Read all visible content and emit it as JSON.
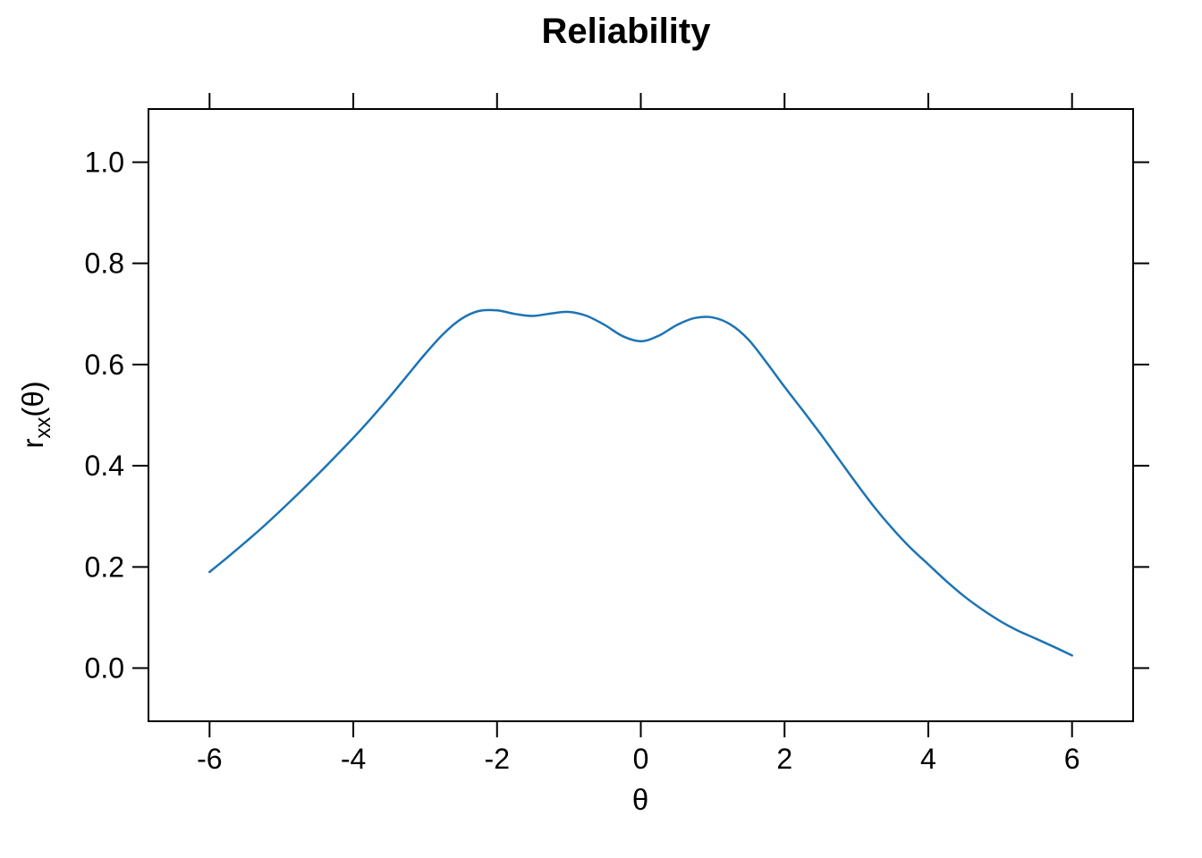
{
  "page": {
    "background_color": "#ffffff",
    "foreground_color": "#000000"
  },
  "chart": {
    "title": "Reliability",
    "x_label": "θ",
    "y_label_base": "r",
    "y_label_sub": "xx",
    "y_label_suffix": "(θ)",
    "line_color": "#1c74b4",
    "axis_color": "#000000",
    "x_tick_labels": [
      "-6",
      "-4",
      "-2",
      "0",
      "2",
      "4",
      "6"
    ],
    "y_tick_labels": [
      "0.0",
      "0.2",
      "0.4",
      "0.6",
      "0.8",
      "1.0"
    ]
  },
  "chart_data": {
    "type": "line",
    "title": "Reliability",
    "xlabel": "θ",
    "ylabel": "r_xx(θ)",
    "xlim": [
      -6.85,
      6.85
    ],
    "ylim": [
      -0.105,
      1.105
    ],
    "x_ticks": [
      -6,
      -4,
      -2,
      0,
      2,
      4,
      6
    ],
    "y_ticks": [
      0.0,
      0.2,
      0.4,
      0.6,
      0.8,
      1.0
    ],
    "grid": false,
    "legend": "none",
    "box": "all-four-sides-ticked",
    "series": [
      {
        "name": "reliability-curve",
        "color": "#1c74b4",
        "x": [
          -6,
          -5.75,
          -5.5,
          -5.25,
          -5,
          -4.75,
          -4.5,
          -4.25,
          -4,
          -3.75,
          -3.5,
          -3.25,
          -3,
          -2.75,
          -2.5,
          -2.25,
          -2,
          -1.75,
          -1.5,
          -1.25,
          -1,
          -0.75,
          -0.5,
          -0.25,
          0,
          0.25,
          0.5,
          0.75,
          1,
          1.25,
          1.5,
          1.75,
          2,
          2.25,
          2.5,
          2.75,
          3,
          3.25,
          3.5,
          3.75,
          4,
          4.25,
          4.5,
          4.75,
          5,
          5.25,
          5.5,
          5.75,
          6
        ],
        "y": [
          0.19,
          0.219,
          0.249,
          0.28,
          0.313,
          0.347,
          0.382,
          0.418,
          0.455,
          0.494,
          0.535,
          0.578,
          0.621,
          0.66,
          0.69,
          0.706,
          0.707,
          0.7,
          0.696,
          0.701,
          0.704,
          0.696,
          0.678,
          0.656,
          0.646,
          0.657,
          0.678,
          0.692,
          0.693,
          0.679,
          0.649,
          0.604,
          0.556,
          0.51,
          0.463,
          0.414,
          0.365,
          0.318,
          0.276,
          0.238,
          0.205,
          0.172,
          0.142,
          0.116,
          0.093,
          0.074,
          0.058,
          0.042,
          0.025
        ]
      }
    ]
  }
}
